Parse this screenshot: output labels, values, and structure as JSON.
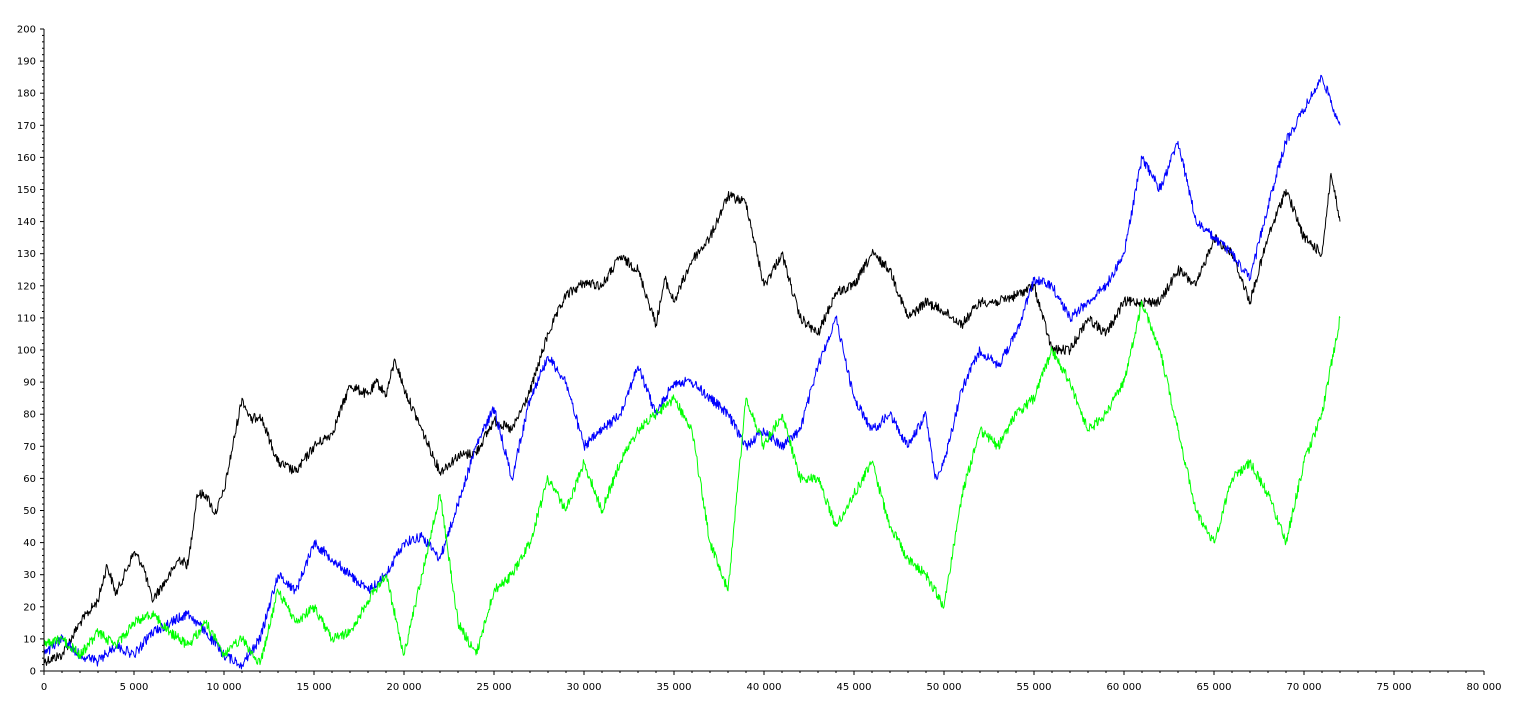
{
  "chart_data": {
    "type": "line",
    "title": "",
    "xlabel": "",
    "ylabel": "",
    "xlim": [
      0,
      80000
    ],
    "ylim": [
      0,
      200
    ],
    "grid": false,
    "legend": "none",
    "x_ticks": [
      {
        "value": 0,
        "label": "0"
      },
      {
        "value": 5000,
        "label": "5 000"
      },
      {
        "value": 10000,
        "label": "10 000"
      },
      {
        "value": 15000,
        "label": "15 000"
      },
      {
        "value": 20000,
        "label": "20 000"
      },
      {
        "value": 25000,
        "label": "25 000"
      },
      {
        "value": 30000,
        "label": "30 000"
      },
      {
        "value": 35000,
        "label": "35 000"
      },
      {
        "value": 40000,
        "label": "40 000"
      },
      {
        "value": 45000,
        "label": "45 000"
      },
      {
        "value": 50000,
        "label": "50 000"
      },
      {
        "value": 55000,
        "label": "55 000"
      },
      {
        "value": 60000,
        "label": "60 000"
      },
      {
        "value": 65000,
        "label": "65 000"
      },
      {
        "value": 70000,
        "label": "70 000"
      },
      {
        "value": 75000,
        "label": "75 000"
      },
      {
        "value": 80000,
        "label": "80 000"
      }
    ],
    "y_ticks": [
      {
        "value": 0,
        "label": "0"
      },
      {
        "value": 10,
        "label": "10"
      },
      {
        "value": 20,
        "label": "20"
      },
      {
        "value": 30,
        "label": "30"
      },
      {
        "value": 40,
        "label": "40"
      },
      {
        "value": 50,
        "label": "50"
      },
      {
        "value": 60,
        "label": "60"
      },
      {
        "value": 70,
        "label": "70"
      },
      {
        "value": 80,
        "label": "80"
      },
      {
        "value": 90,
        "label": "90"
      },
      {
        "value": 100,
        "label": "100"
      },
      {
        "value": 110,
        "label": "110"
      },
      {
        "value": 120,
        "label": "120"
      },
      {
        "value": 130,
        "label": "130"
      },
      {
        "value": 140,
        "label": "140"
      },
      {
        "value": 150,
        "label": "150"
      },
      {
        "value": 160,
        "label": "160"
      },
      {
        "value": 170,
        "label": "170"
      },
      {
        "value": 180,
        "label": "180"
      },
      {
        "value": 190,
        "label": "190"
      },
      {
        "value": 200,
        "label": "200"
      }
    ],
    "series": [
      {
        "color": "#000000",
        "x": [
          0,
          1000,
          2000,
          3000,
          3500,
          4000,
          5000,
          5500,
          6000,
          7000,
          7500,
          8000,
          8500,
          9000,
          9500,
          10000,
          11000,
          11500,
          12000,
          13000,
          14000,
          15000,
          16000,
          17000,
          18000,
          18500,
          19000,
          19500,
          20000,
          21000,
          22000,
          23000,
          24000,
          25000,
          26000,
          27000,
          28000,
          29000,
          30000,
          31000,
          32000,
          33000,
          34000,
          34500,
          35000,
          36000,
          37000,
          38000,
          39000,
          40000,
          41000,
          42000,
          43000,
          44000,
          45000,
          46000,
          47000,
          48000,
          49000,
          50000,
          51000,
          52000,
          53000,
          54000,
          55000,
          56000,
          57000,
          58000,
          59000,
          60000,
          61000,
          62000,
          63000,
          64000,
          65000,
          66000,
          67000,
          68000,
          69000,
          70000,
          71000,
          71500,
          72000
        ],
        "y": [
          3,
          5,
          15,
          22,
          33,
          24,
          37,
          33,
          22,
          30,
          35,
          33,
          55,
          55,
          49,
          56,
          85,
          78,
          80,
          65,
          62,
          70,
          74,
          89,
          86,
          90,
          86,
          97,
          88,
          75,
          62,
          67,
          68,
          78,
          75,
          87,
          105,
          117,
          121,
          120,
          129,
          125,
          108,
          122,
          115,
          128,
          135,
          148,
          146,
          120,
          130,
          110,
          105,
          118,
          120,
          130,
          125,
          110,
          115,
          112,
          108,
          115,
          115,
          117,
          120,
          100,
          100,
          110,
          105,
          115,
          115,
          115,
          125,
          120,
          135,
          130,
          115,
          135,
          150,
          135,
          130,
          155,
          140
        ]
      },
      {
        "color": "#0000ff",
        "x": [
          0,
          1000,
          2000,
          3000,
          4000,
          5000,
          6000,
          7000,
          8000,
          9000,
          10000,
          11000,
          12000,
          13000,
          14000,
          15000,
          16000,
          17000,
          18000,
          19000,
          20000,
          21000,
          22000,
          23000,
          24000,
          25000,
          26000,
          27000,
          28000,
          29000,
          30000,
          31000,
          32000,
          33000,
          34000,
          35000,
          36000,
          37000,
          38000,
          39000,
          40000,
          41000,
          42000,
          43000,
          44000,
          45000,
          46000,
          47000,
          48000,
          49000,
          49500,
          50000,
          51000,
          52000,
          53000,
          54000,
          55000,
          56000,
          57000,
          58000,
          59000,
          60000,
          61000,
          62000,
          63000,
          64000,
          65000,
          66000,
          67000,
          68000,
          69000,
          70000,
          71000,
          72000
        ],
        "y": [
          5,
          10,
          5,
          3,
          8,
          5,
          12,
          15,
          18,
          12,
          5,
          2,
          10,
          30,
          25,
          40,
          35,
          30,
          25,
          30,
          40,
          42,
          35,
          52,
          70,
          82,
          60,
          85,
          98,
          90,
          70,
          75,
          80,
          95,
          80,
          90,
          90,
          85,
          80,
          70,
          75,
          70,
          75,
          95,
          110,
          85,
          75,
          80,
          70,
          80,
          60,
          65,
          88,
          100,
          95,
          105,
          122,
          120,
          110,
          115,
          120,
          130,
          160,
          150,
          165,
          140,
          135,
          130,
          122,
          145,
          165,
          175,
          185,
          170
        ]
      },
      {
        "color": "#00ff00",
        "x": [
          0,
          1000,
          2000,
          3000,
          4000,
          5000,
          6000,
          7000,
          8000,
          9000,
          10000,
          11000,
          12000,
          13000,
          14000,
          15000,
          16000,
          17000,
          18000,
          19000,
          20000,
          21000,
          22000,
          23000,
          24000,
          25000,
          26000,
          27000,
          28000,
          29000,
          30000,
          31000,
          32000,
          33000,
          34000,
          35000,
          36000,
          37000,
          38000,
          39000,
          40000,
          41000,
          42000,
          43000,
          44000,
          45000,
          46000,
          47000,
          48000,
          49000,
          50000,
          51000,
          52000,
          53000,
          54000,
          55000,
          56000,
          57000,
          58000,
          59000,
          60000,
          61000,
          62000,
          63000,
          64000,
          65000,
          66000,
          67000,
          68000,
          69000,
          70000,
          71000,
          72000
        ],
        "y": [
          8,
          10,
          5,
          12,
          8,
          15,
          18,
          12,
          8,
          15,
          5,
          10,
          2,
          25,
          15,
          20,
          10,
          12,
          22,
          30,
          5,
          30,
          55,
          15,
          5,
          25,
          30,
          40,
          60,
          50,
          65,
          50,
          65,
          75,
          80,
          85,
          75,
          40,
          25,
          85,
          70,
          80,
          60,
          60,
          45,
          55,
          65,
          45,
          35,
          30,
          20,
          55,
          75,
          70,
          80,
          85,
          100,
          90,
          75,
          80,
          90,
          115,
          100,
          75,
          50,
          40,
          60,
          65,
          55,
          40,
          65,
          80,
          110
        ]
      }
    ]
  }
}
